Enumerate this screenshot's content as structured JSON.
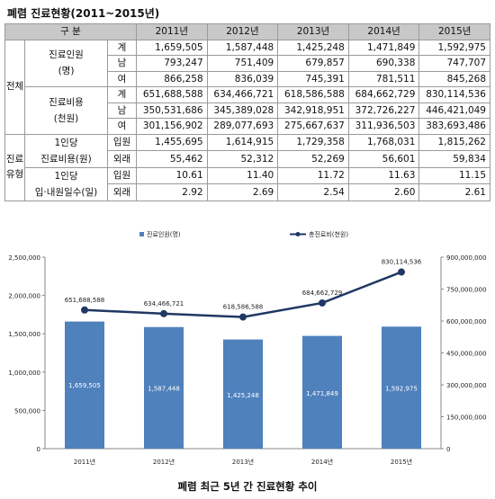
{
  "title": "폐렴 진료현황(2011~2015년)",
  "table": {
    "header_label": "구 분",
    "years": [
      "2011년",
      "2012년",
      "2013년",
      "2014년",
      "2015년"
    ],
    "section_total": "전체",
    "section_type": "진료유형",
    "groups": [
      {
        "label": "진료인원\n(명)",
        "rows": [
          {
            "sub": "계",
            "values": [
              "1,659,505",
              "1,587,448",
              "1,425,248",
              "1,471,849",
              "1,592,975"
            ]
          },
          {
            "sub": "남",
            "values": [
              "793,247",
              "751,409",
              "679,857",
              "690,338",
              "747,707"
            ]
          },
          {
            "sub": "여",
            "values": [
              "866,258",
              "836,039",
              "745,391",
              "781,511",
              "845,268"
            ]
          }
        ]
      },
      {
        "label": "진료비용\n(천원)",
        "rows": [
          {
            "sub": "계",
            "values": [
              "651,688,588",
              "634,466,721",
              "618,586,588",
              "684,662,729",
              "830,114,536"
            ]
          },
          {
            "sub": "남",
            "values": [
              "350,531,686",
              "345,389,028",
              "342,918,951",
              "372,726,227",
              "446,421,049"
            ]
          },
          {
            "sub": "여",
            "values": [
              "301,156,902",
              "289,077,693",
              "275,667,637",
              "311,936,503",
              "383,693,486"
            ]
          }
        ]
      },
      {
        "label": "1인당\n진료비용(원)",
        "rows": [
          {
            "sub": "입원",
            "values": [
              "1,455,695",
              "1,614,915",
              "1,729,358",
              "1,768,031",
              "1,815,262"
            ]
          },
          {
            "sub": "외래",
            "values": [
              "55,462",
              "52,312",
              "52,269",
              "56,601",
              "59,834"
            ]
          }
        ]
      },
      {
        "label": "1인당\n입·내원일수(일)",
        "rows": [
          {
            "sub": "입원",
            "values": [
              "10.61",
              "11.40",
              "11.72",
              "11.63",
              "11.15"
            ]
          },
          {
            "sub": "외래",
            "values": [
              "2.92",
              "2.69",
              "2.54",
              "2.60",
              "2.61"
            ]
          }
        ]
      }
    ]
  },
  "chart_data": {
    "type": "bar",
    "categories": [
      "2011년",
      "2012년",
      "2013년",
      "2014년",
      "2015년"
    ],
    "series": [
      {
        "name": "진료인원(명)",
        "type": "bar",
        "axis": "left",
        "values": [
          1659505,
          1587448,
          1425248,
          1471849,
          1592975
        ],
        "labels": [
          "1,659,505",
          "1,587,448",
          "1,425,248",
          "1,471,849",
          "1,592,975"
        ]
      },
      {
        "name": "총진료비(천원)",
        "type": "line",
        "axis": "right",
        "values": [
          651688588,
          634466721,
          618586588,
          684662729,
          830114536
        ],
        "labels": [
          "651,688,588",
          "634,466,721",
          "618,586,588",
          "684,662,729",
          "830,114,536"
        ]
      }
    ],
    "y_left": {
      "min": 0,
      "max": 2500000,
      "ticks": [
        "0",
        "500,000",
        "1,000,000",
        "1,500,000",
        "2,000,000",
        "2,500,000"
      ]
    },
    "y_right": {
      "min": 0,
      "max": 900000000,
      "ticks": [
        "0",
        "150,000,000",
        "300,000,000",
        "450,000,000",
        "600,000,000",
        "750,000,000",
        "900,000,000"
      ]
    },
    "legend_position": "top",
    "grid": false,
    "colors": {
      "bar": "#4f81bd",
      "line": "#1f3864"
    }
  },
  "caption": "폐렴 최근 5년 간 진료현황 추이"
}
